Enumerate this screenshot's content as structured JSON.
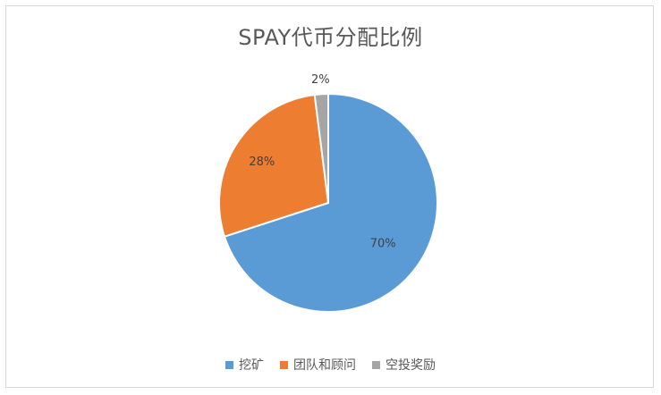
{
  "chart_data": {
    "type": "pie",
    "title": "SPAY代币分配比例",
    "categories": [
      "挖矿",
      "团队和顾问",
      "空投奖励"
    ],
    "values": [
      70,
      28,
      2
    ],
    "labels": [
      "70%",
      "28%",
      "2%"
    ],
    "colors": [
      "#5b9bd5",
      "#ed7d31",
      "#a5a5a5"
    ],
    "legend_position": "bottom"
  }
}
